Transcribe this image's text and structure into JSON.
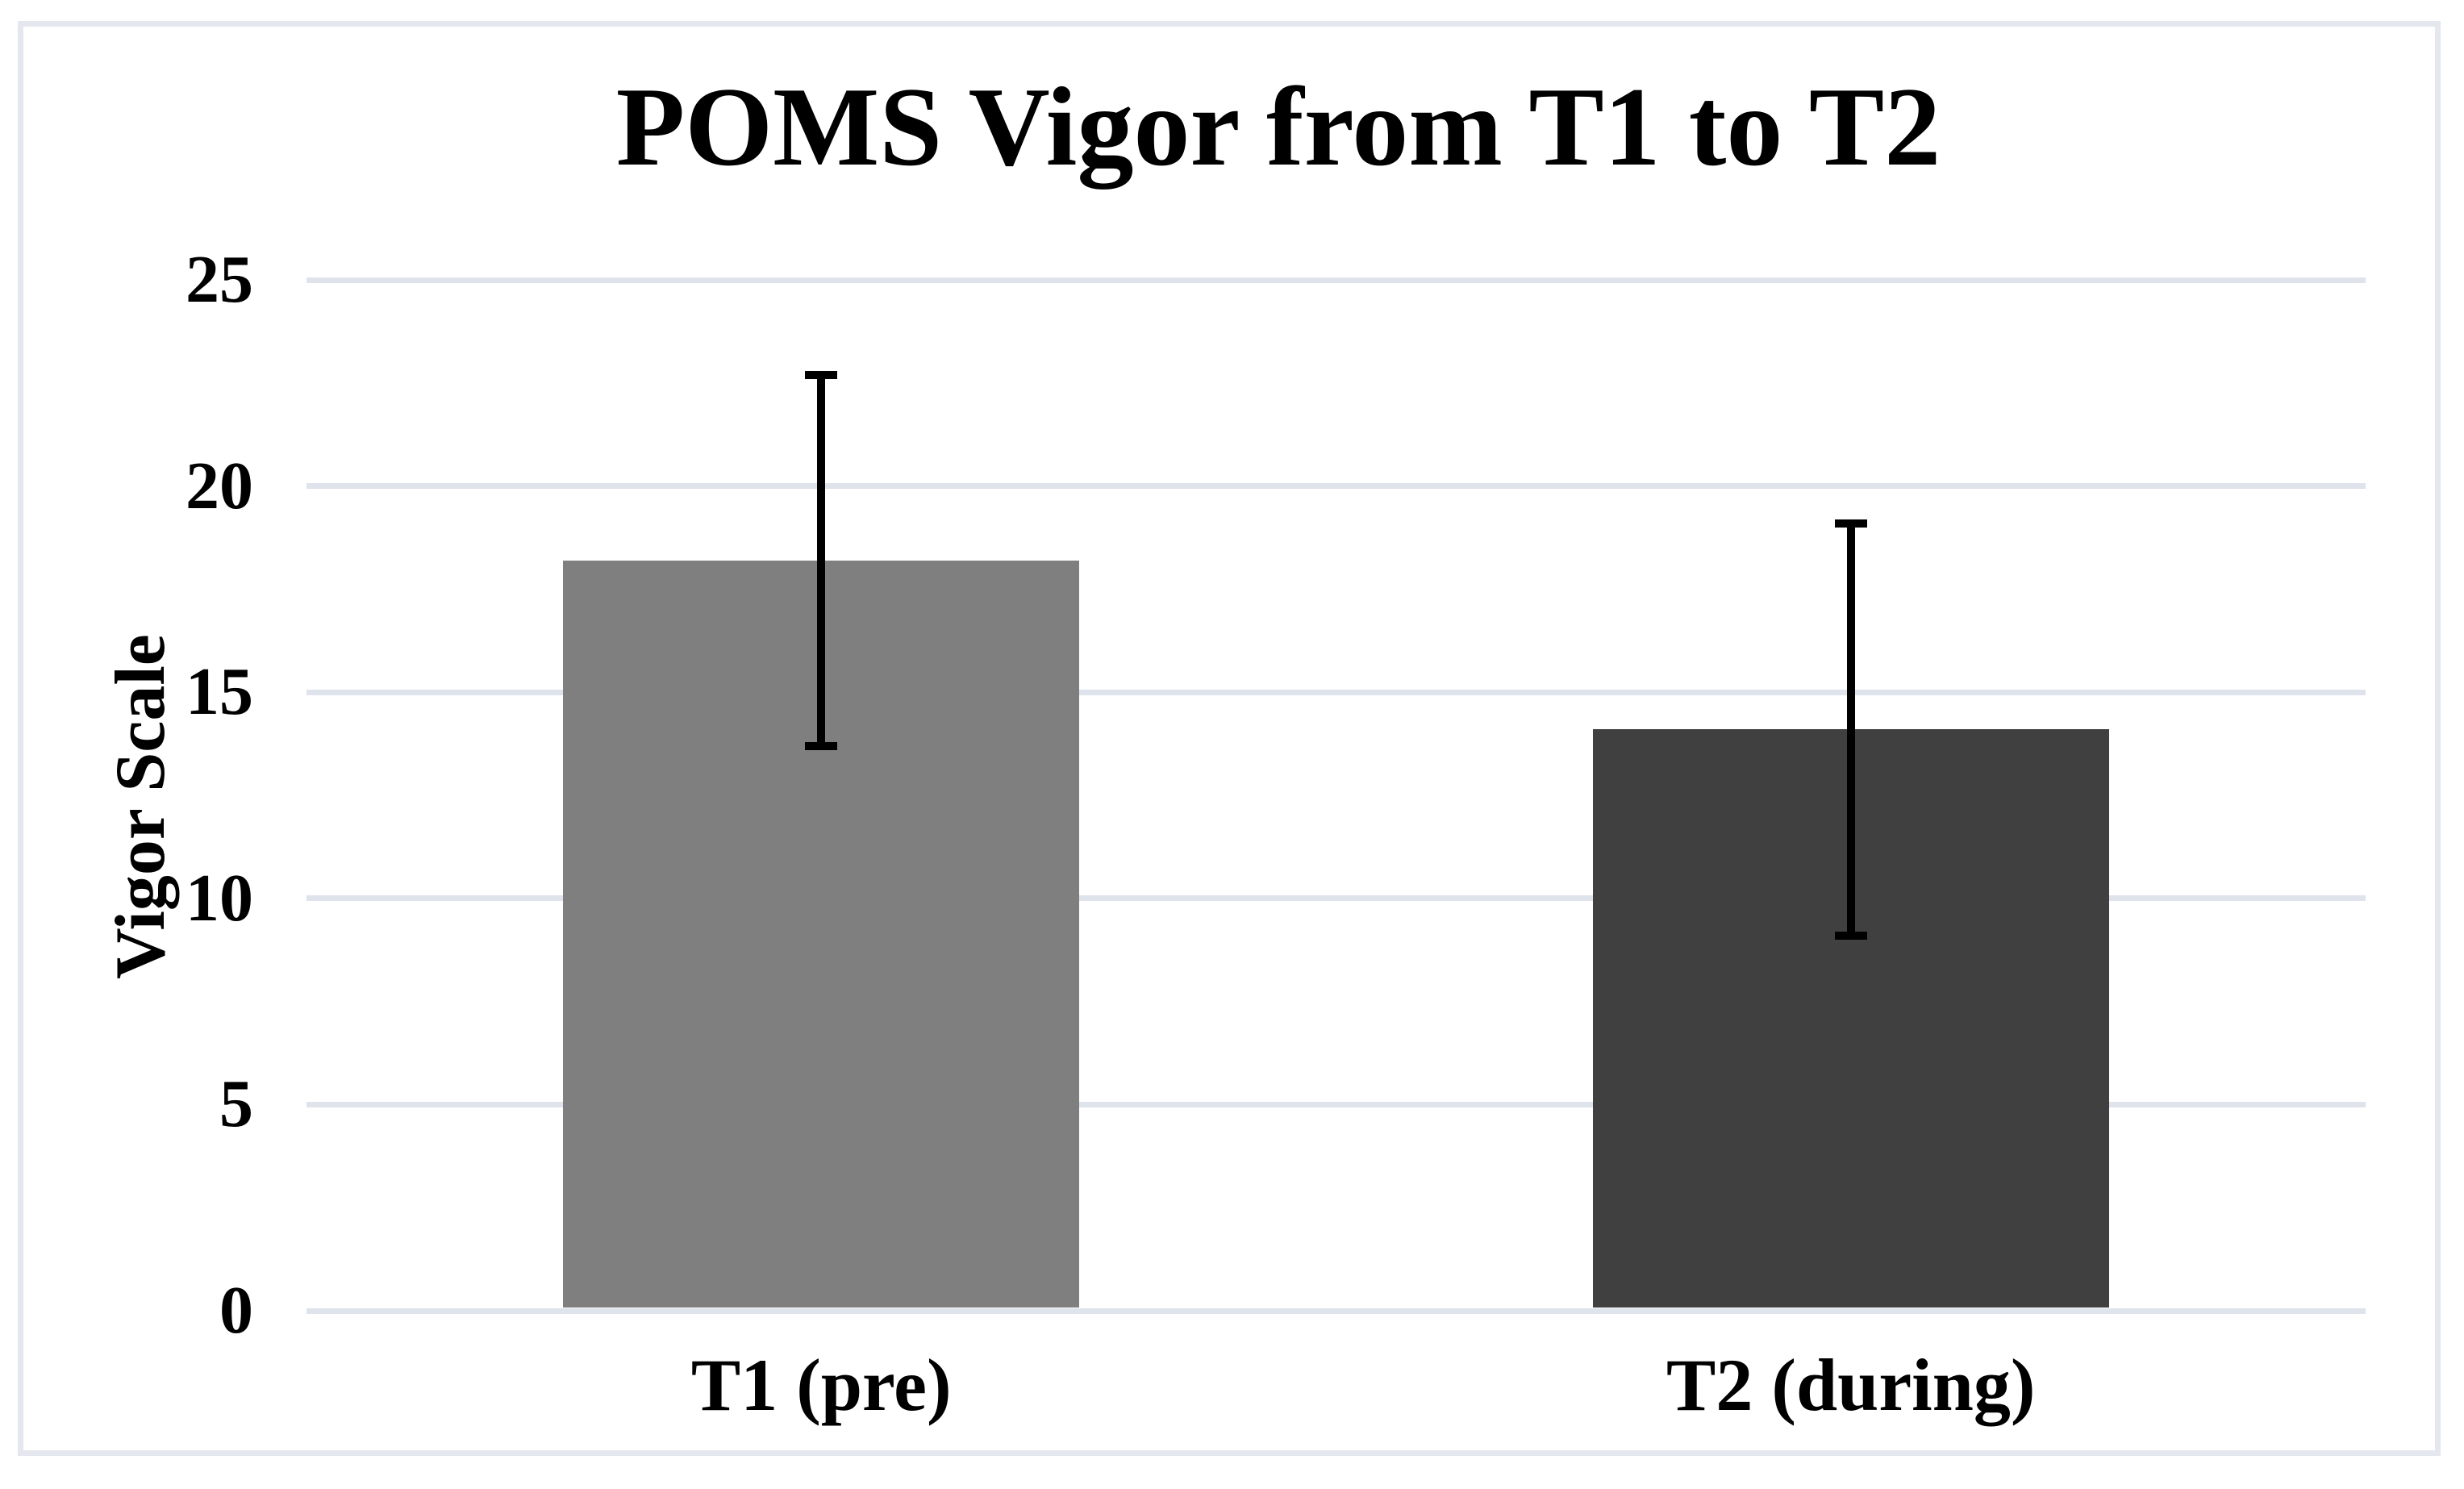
{
  "figure": {
    "background": "#ffffff",
    "border_color": "#e4e7ed"
  },
  "chart_data": {
    "type": "bar",
    "title": "POMS Vigor from T1 to T2",
    "xlabel": "",
    "ylabel": "Vigor Scale",
    "categories": [
      "T1 (pre)",
      "T2 (during)"
    ],
    "values": [
      18.2,
      14.1
    ],
    "error_bars": {
      "upper": [
        22.7,
        19.1
      ],
      "lower": [
        13.7,
        9.1
      ]
    },
    "yticks": [
      0,
      5,
      10,
      15,
      20,
      25
    ],
    "ylim": [
      0,
      25
    ],
    "grid": "horizontal-gridlines",
    "legend": "none",
    "bar_colors": [
      "#7f7f7f",
      "#404040"
    ],
    "gridline_color": "#dfe3eb",
    "error_bar_color": "#000000",
    "text_color": "#000000"
  }
}
